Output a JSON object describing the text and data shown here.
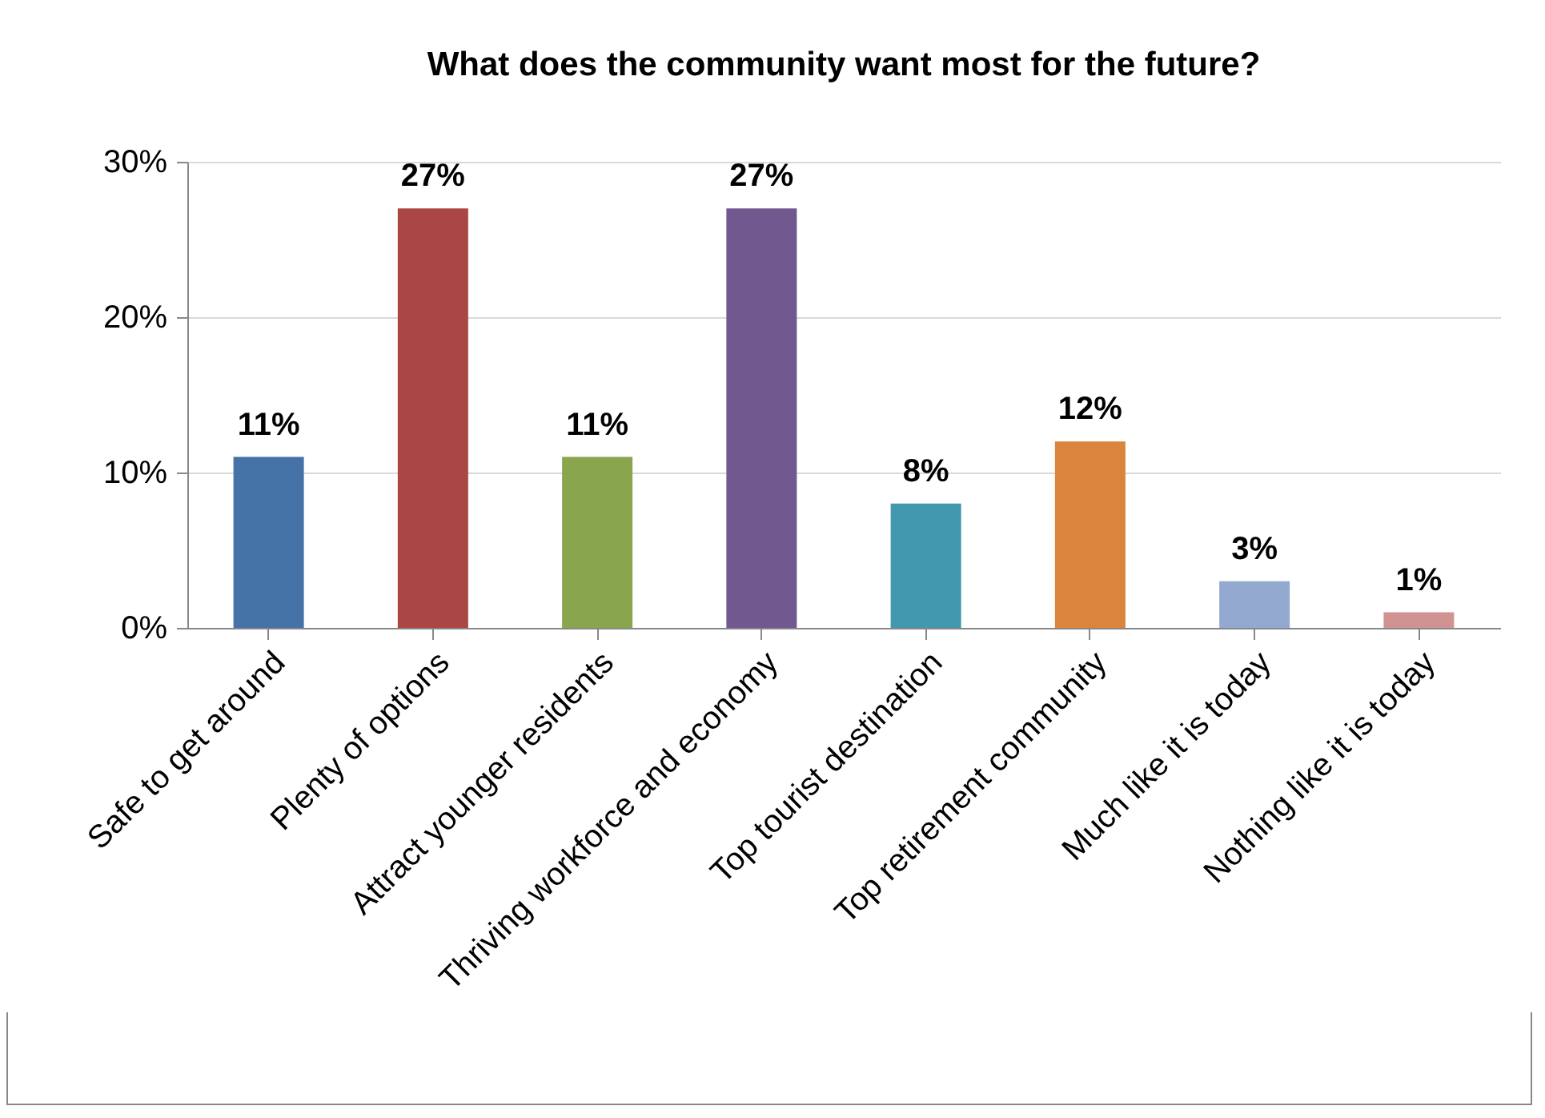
{
  "chart_data": {
    "type": "bar",
    "title": "What does the community want most for the future?",
    "categories": [
      "Safe to get around",
      "Plenty of options",
      "Attract younger residents",
      "Thriving workforce and economy",
      "Top tourist destination",
      "Top retirement community",
      "Much like it is today",
      "Nothing like it is today"
    ],
    "values": [
      11,
      27,
      11,
      27,
      8,
      12,
      3,
      1
    ],
    "colors": [
      "#4573a7",
      "#aa4643",
      "#89a54e",
      "#71588f",
      "#4198af",
      "#db843d",
      "#93a9cf",
      "#d19392"
    ],
    "ylim": [
      0,
      30
    ],
    "yticks": [
      {
        "value": 0,
        "label": "0%"
      },
      {
        "value": 10,
        "label": "10%"
      },
      {
        "value": 20,
        "label": "20%"
      },
      {
        "value": 30,
        "label": "30%"
      }
    ],
    "grid": "y",
    "data_labels": true,
    "value_labels": [
      "11%",
      "27%",
      "11%",
      "27%",
      "8%",
      "12%",
      "3%",
      "1%"
    ]
  }
}
